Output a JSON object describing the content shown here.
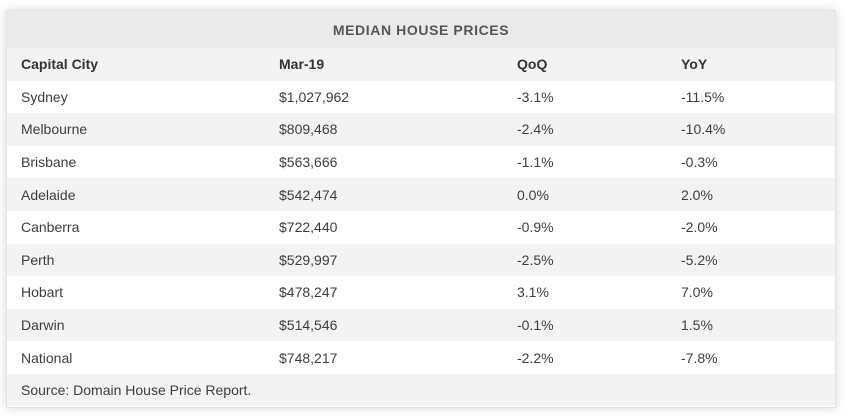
{
  "chart_data": {
    "type": "table",
    "title": "MEDIAN HOUSE PRICES",
    "columns": [
      "Capital City",
      "Mar-19",
      "QoQ",
      "YoY"
    ],
    "rows": [
      [
        "Sydney",
        "$1,027,962",
        "-3.1%",
        "-11.5%"
      ],
      [
        "Melbourne",
        "$809,468",
        "-2.4%",
        "-10.4%"
      ],
      [
        "Brisbane",
        "$563,666",
        "-1.1%",
        "-0.3%"
      ],
      [
        "Adelaide",
        "$542,474",
        "0.0%",
        "2.0%"
      ],
      [
        "Canberra",
        "$722,440",
        "-0.9%",
        "-2.0%"
      ],
      [
        "Perth",
        "$529,997",
        "-2.5%",
        "-5.2%"
      ],
      [
        "Hobart",
        "$478,247",
        "3.1%",
        "7.0%"
      ],
      [
        "Darwin",
        "$514,546",
        "-0.1%",
        "1.5%"
      ],
      [
        "National",
        "$748,217",
        "-2.2%",
        "-7.8%"
      ]
    ],
    "source": "Source: Domain House Price Report."
  },
  "colors": {
    "title_bar": "#eaeaea",
    "zebra_row": "#f3f3f3",
    "text": "#333333"
  }
}
